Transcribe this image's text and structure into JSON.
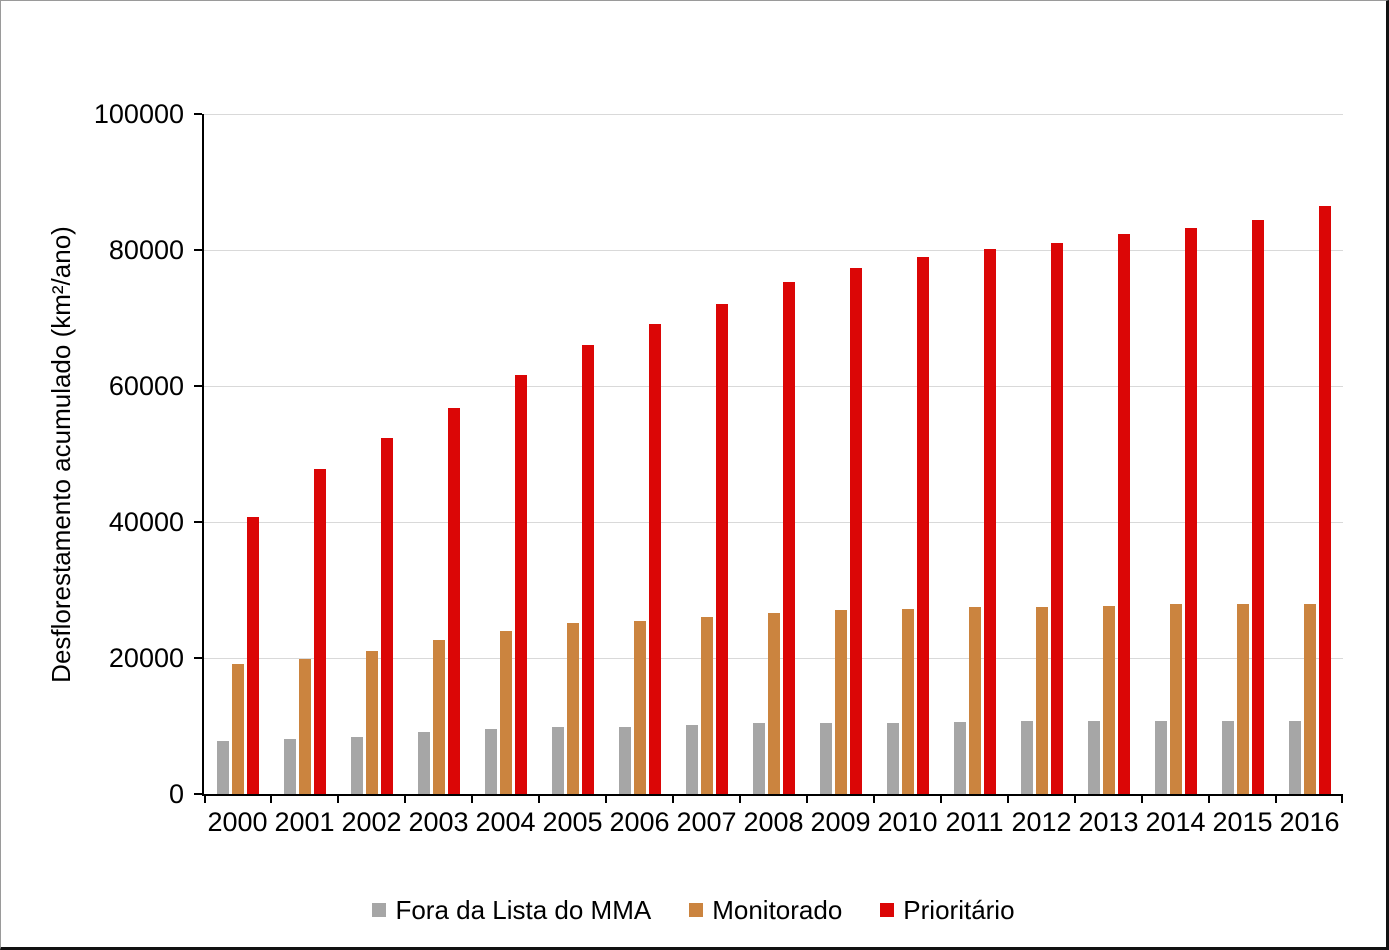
{
  "chart_data": {
    "type": "bar",
    "title": "",
    "xlabel": "",
    "ylabel": "Desflorestamento acumulado (km²/ano)",
    "ylim": [
      0,
      100000
    ],
    "ytick_values": [
      0,
      20000,
      40000,
      60000,
      80000,
      100000
    ],
    "ytick_labels": [
      "0",
      "20000",
      "40000",
      "60000",
      "80000",
      "100000"
    ],
    "grid": true,
    "legend_position": "bottom",
    "categories": [
      "2000",
      "2001",
      "2002",
      "2003",
      "2004",
      "2005",
      "2006",
      "2007",
      "2008",
      "2009",
      "2010",
      "2011",
      "2012",
      "2013",
      "2014",
      "2015",
      "2016"
    ],
    "series": [
      {
        "name": "Fora da Lista do MMA",
        "color": "#a6a6a6",
        "values": [
          7800,
          8100,
          8400,
          9150,
          9500,
          9800,
          9850,
          10150,
          10400,
          10450,
          10500,
          10650,
          10700,
          10700,
          10700,
          10700,
          10700
        ]
      },
      {
        "name": "Monitorado",
        "color": "#cb843f",
        "values": [
          19100,
          19900,
          21000,
          22600,
          23900,
          25100,
          25400,
          26000,
          26600,
          27000,
          27200,
          27500,
          27550,
          27600,
          27900,
          27950,
          27950
        ]
      },
      {
        "name": "Prioritário",
        "color": "#db0606",
        "values": [
          40800,
          47800,
          52400,
          56800,
          61600,
          66000,
          69100,
          72100,
          75300,
          77400,
          79000,
          80200,
          81100,
          82400,
          83300,
          84400,
          86400
        ]
      }
    ]
  }
}
